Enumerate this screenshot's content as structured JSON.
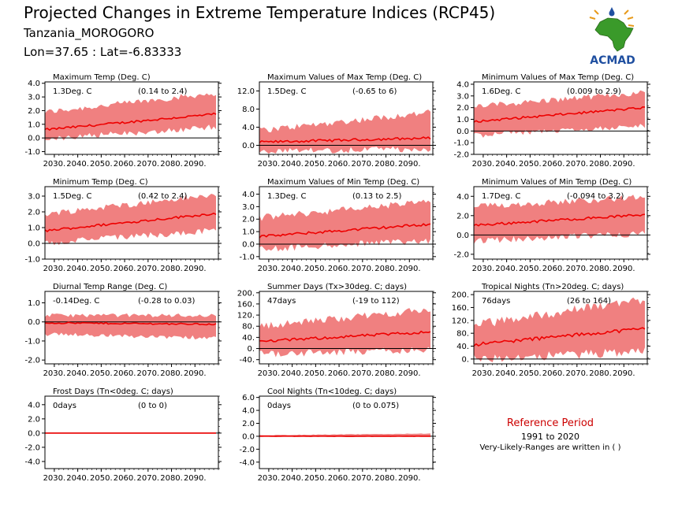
{
  "header": {
    "title": "Projected Changes in Extreme Temperature Indices (RCP45)",
    "location": "Tanzania_MOROGORO",
    "coords": "Lon=37.65 : Lat=-6.83333"
  },
  "logo": {
    "text": "ACMAD",
    "icon": "africa-map-icon",
    "colors": {
      "green": "#3a9a2a",
      "blue": "#1f4fa0",
      "orange": "#e89a1a"
    }
  },
  "reference": {
    "title": "Reference Period",
    "years": "1991 to 2020",
    "note": "Very-Likely-Ranges are written in ( )"
  },
  "style": {
    "band_color": "#f08080",
    "line_color": "#ee0000",
    "zero_line": "#000000"
  },
  "chart_data": [
    {
      "type": "area",
      "title": "Maximum Temp (Deg. C)",
      "value_label": "1.3Deg. C",
      "range_label": "(0.14 to 2.4)",
      "x_ticks": [
        "2030.",
        "2040.",
        "2050.",
        "2060.",
        "2070.",
        "2080.",
        "2090."
      ],
      "x_range": [
        2026,
        2100
      ],
      "y_ticks": [
        "4.0",
        "3.0",
        "2.0",
        "1.0",
        "0.0",
        "-1.0"
      ],
      "y_range": [
        -1.2,
        4.1
      ],
      "mean": {
        "start": 0.6,
        "end": 1.75
      },
      "band": {
        "lower": [
          0.0,
          0.9
        ],
        "upper": [
          1.8,
          3.2
        ]
      }
    },
    {
      "type": "area",
      "title": "Maximum Values of Max Temp (Deg. C)",
      "value_label": "1.5Deg. C",
      "range_label": "(-0.65 to 6)",
      "x_ticks": [
        "2030.",
        "2040.",
        "2050.",
        "2060.",
        "2070.",
        "2080.",
        "2090."
      ],
      "x_range": [
        2026,
        2100
      ],
      "y_ticks": [
        "12.0",
        "8.0",
        "4.0",
        "0.0"
      ],
      "y_range": [
        -2.0,
        14.0
      ],
      "mean": {
        "start": 0.7,
        "end": 1.6
      },
      "band": {
        "lower": [
          -1.0,
          -0.5
        ],
        "upper": [
          3.0,
          7.0
        ]
      }
    },
    {
      "type": "area",
      "title": "Minimum Values of Max Temp (Deg. C)",
      "value_label": "1.6Deg. C",
      "range_label": "(0.009 to 2.9)",
      "x_ticks": [
        "2030.",
        "2040.",
        "2050.",
        "2060.",
        "2070.",
        "2080.",
        "2090."
      ],
      "x_range": [
        2026,
        2100
      ],
      "y_ticks": [
        "4.0",
        "3.0",
        "2.0",
        "1.0",
        "0.0",
        "-1.0",
        "-2.0"
      ],
      "y_range": [
        -2.0,
        4.2
      ],
      "mean": {
        "start": 0.8,
        "end": 2.0
      },
      "band": {
        "lower": [
          -0.3,
          0.6
        ],
        "upper": [
          2.0,
          3.2
        ]
      }
    },
    {
      "type": "area",
      "title": "Minimum Temp (Deg. C)",
      "value_label": "1.5Deg. C",
      "range_label": "(0.42 to 2.4)",
      "x_ticks": [
        "2030.",
        "2040.",
        "2050.",
        "2060.",
        "2070.",
        "2080.",
        "2090."
      ],
      "x_range": [
        2026,
        2100
      ],
      "y_ticks": [
        "3.0",
        "2.0",
        "1.0",
        "0.0",
        "-1.0"
      ],
      "y_range": [
        -1.0,
        3.6
      ],
      "mean": {
        "start": 0.8,
        "end": 1.9
      },
      "band": {
        "lower": [
          0.1,
          0.9
        ],
        "upper": [
          1.8,
          3.0
        ]
      }
    },
    {
      "type": "area",
      "title": "Maximum Values of Min Temp (Deg. C)",
      "value_label": "1.3Deg. C",
      "range_label": "(0.13 to 2.5)",
      "x_ticks": [
        "2030.",
        "2040.",
        "2050.",
        "2060.",
        "2070.",
        "2080.",
        "2090."
      ],
      "x_range": [
        2026,
        2100
      ],
      "y_ticks": [
        "4.0",
        "3.0",
        "2.0",
        "1.0",
        "0.0",
        "-1.0"
      ],
      "y_range": [
        -1.2,
        4.6
      ],
      "mean": {
        "start": 0.6,
        "end": 1.6
      },
      "band": {
        "lower": [
          -0.3,
          0.4
        ],
        "upper": [
          2.0,
          3.3
        ]
      }
    },
    {
      "type": "area",
      "title": "Minimum Values of Min Temp (Deg. C)",
      "value_label": "1.7Deg. C",
      "range_label": "(-0.094 to 3.2)",
      "x_ticks": [
        "2030.",
        "2040.",
        "2050.",
        "2060.",
        "2070.",
        "2080.",
        "2090."
      ],
      "x_range": [
        2026,
        2100
      ],
      "y_ticks": [
        "4.0",
        "2.0",
        "0.0",
        "-2.0"
      ],
      "y_range": [
        -2.5,
        5.0
      ],
      "mean": {
        "start": 1.0,
        "end": 2.1
      },
      "band": {
        "lower": [
          -0.5,
          0.3
        ],
        "upper": [
          2.8,
          3.8
        ]
      }
    },
    {
      "type": "area",
      "title": "Diurnal Temp Range (Deg. C)",
      "value_label": "-0.14Deg. C",
      "range_label": "(-0.28 to 0.03)",
      "x_ticks": [
        "2030.",
        "2040.",
        "2050.",
        "2060.",
        "2070.",
        "2080.",
        "2090."
      ],
      "x_range": [
        2026,
        2100
      ],
      "y_ticks": [
        "1.0",
        "0.0",
        "-1.0",
        "-2.0"
      ],
      "y_range": [
        -2.2,
        1.6
      ],
      "mean": {
        "start": -0.05,
        "end": -0.12
      },
      "band": {
        "lower": [
          -0.6,
          -0.8
        ],
        "upper": [
          0.3,
          0.3
        ]
      }
    },
    {
      "type": "area",
      "title": "Summer Days (Tx>30deg. C; days)",
      "value_label": "47days",
      "range_label": "(-19 to 112)",
      "x_ticks": [
        "2030.",
        "2040.",
        "2050.",
        "2060.",
        "2070.",
        "2080.",
        "2090."
      ],
      "x_range": [
        2026,
        2100
      ],
      "y_ticks": [
        "200.",
        "160.",
        "120.",
        "80.",
        "40.",
        "0.",
        "-40."
      ],
      "y_range": [
        -55,
        205
      ],
      "mean": {
        "start": 25,
        "end": 60
      },
      "band": {
        "lower": [
          -15,
          0
        ],
        "upper": [
          75,
          135
        ]
      }
    },
    {
      "type": "area",
      "title": "Tropical Nights (Tn>20deg. C; days)",
      "value_label": "76days",
      "range_label": "(26 to 164)",
      "x_ticks": [
        "2030.",
        "2040.",
        "2050.",
        "2060.",
        "2070.",
        "2080.",
        "2090."
      ],
      "x_range": [
        2026,
        2100
      ],
      "y_ticks": [
        "200.",
        "160.",
        "120.",
        "80.",
        "40.",
        "0."
      ],
      "y_range": [
        -15,
        210
      ],
      "mean": {
        "start": 45,
        "end": 95
      },
      "band": {
        "lower": [
          5,
          30
        ],
        "upper": [
          100,
          180
        ]
      }
    },
    {
      "type": "area",
      "title": "Frost Days (Tn<0deg. C; days)",
      "value_label": "0days",
      "range_label": "(0 to 0)",
      "x_ticks": [
        "2030.",
        "2040.",
        "2050.",
        "2060.",
        "2070.",
        "2080.",
        "2090."
      ],
      "x_range": [
        2026,
        2100
      ],
      "y_ticks": [
        "4.0",
        "2.0",
        "0.0",
        "-2.0",
        "-4.0"
      ],
      "y_range": [
        -5.0,
        5.2
      ],
      "mean": {
        "start": 0,
        "end": 0
      },
      "band": {
        "lower": [
          0,
          0
        ],
        "upper": [
          0,
          0
        ]
      }
    },
    {
      "type": "area",
      "title": "Cool Nights (Tn<10deg. C; days)",
      "value_label": "0days",
      "range_label": "(0 to 0.075)",
      "x_ticks": [
        "2030.",
        "2040.",
        "2050.",
        "2060.",
        "2070.",
        "2080.",
        "2090."
      ],
      "x_range": [
        2026,
        2100
      ],
      "y_ticks": [
        "6.0",
        "4.0",
        "2.0",
        "0.0",
        "-2.0",
        "-4.0"
      ],
      "y_range": [
        -5.0,
        6.2
      ],
      "mean": {
        "start": 0,
        "end": 0
      },
      "band": {
        "lower": [
          0,
          0
        ],
        "upper": [
          0.15,
          0.4
        ]
      }
    }
  ]
}
